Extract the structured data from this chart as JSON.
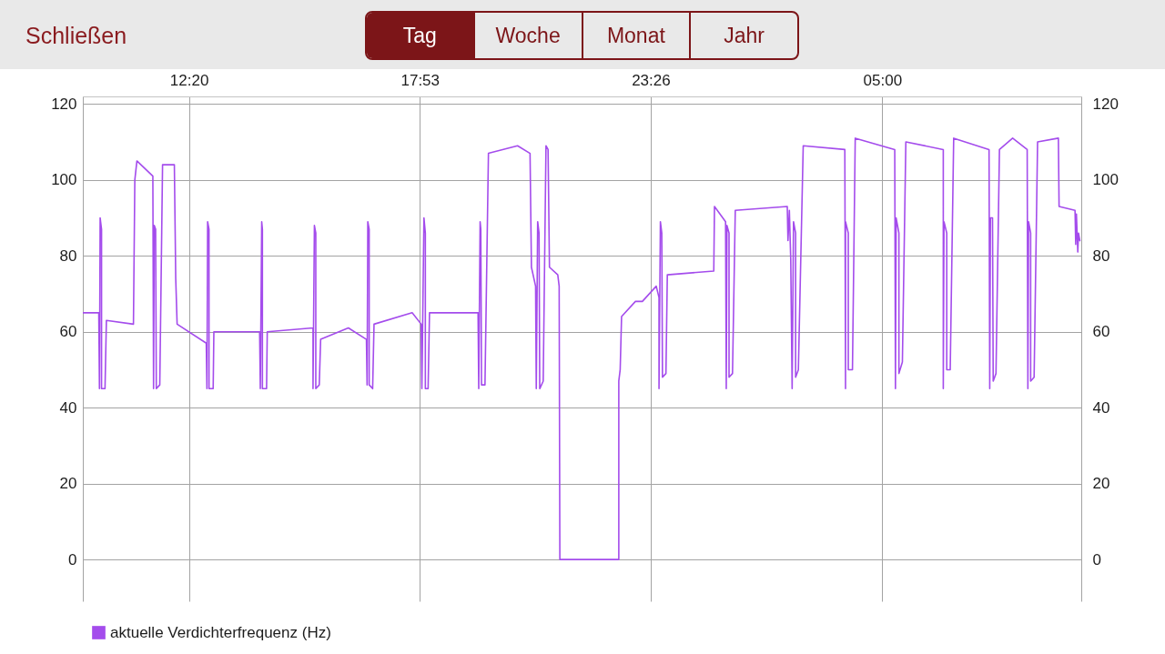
{
  "chart_data": {
    "type": "line",
    "x": [
      "--01-01T09:47",
      "--01-01T10:10",
      "--01-01T10:11",
      "--01-01T10:12",
      "--01-01T10:14",
      "--01-01T10:14",
      "--01-01T10:19",
      "--01-01T10:21",
      "--01-01T11:00",
      "--01-01T11:02",
      "--01-01T11:05",
      "--01-01T11:28",
      "--01-01T11:29",
      "--01-01T11:30",
      "--01-01T11:32",
      "--01-01T11:33",
      "--01-01T11:38",
      "--01-01T11:42",
      "--01-01T11:59",
      "--01-01T12:01",
      "--01-01T12:03",
      "--01-01T12:45",
      "--01-01T12:46",
      "--01-01T12:47",
      "--01-01T12:49",
      "--01-01T12:49",
      "--01-01T12:55",
      "--01-01T12:56",
      "--01-01T14:02",
      "--01-01T14:03",
      "--01-01T14:05",
      "--01-01T14:06",
      "--01-01T14:06",
      "--01-01T14:12",
      "--01-01T14:13",
      "--01-01T15:19",
      "--01-01T15:19",
      "--01-01T15:21",
      "--01-01T15:23",
      "--01-01T15:23",
      "--01-01T15:28",
      "--01-01T15:30",
      "--01-01T16:10",
      "--01-01T16:36",
      "--01-01T16:37",
      "--01-01T16:38",
      "--01-01T16:40",
      "--01-01T16:40",
      "--01-01T16:45",
      "--01-01T16:47",
      "--01-01T17:42",
      "--01-01T17:55",
      "--01-01T17:56",
      "--01-01T17:59",
      "--01-01T18:01",
      "--01-01T18:01",
      "--01-01T18:05",
      "--01-01T18:07",
      "--01-01T19:17",
      "--01-01T19:18",
      "--01-01T19:20",
      "--01-01T19:21",
      "--01-01T19:22",
      "--01-01T19:27",
      "--01-01T19:32",
      "--01-01T20:14",
      "--01-01T20:32",
      "--01-01T20:34",
      "--01-01T20:40",
      "--01-01T20:41",
      "--01-01T20:43",
      "--01-01T20:45",
      "--01-01T20:46",
      "--01-01T20:51",
      "--01-01T20:55",
      "--01-01T20:58",
      "--01-01T21:00",
      "--01-01T21:12",
      "--01-01T21:14",
      "--01-01T21:15",
      "--01-01T22:40",
      "--01-01T22:40",
      "--01-01T22:42",
      "--01-01T22:44",
      "--01-01T23:04",
      "--01-01T23:14",
      "--01-01T23:34",
      "--01-01T23:38",
      "--01-01T23:38",
      "--01-01T23:40",
      "--01-01T23:42",
      "--01-01T23:43",
      "--01-01T23:48",
      "--01-01T23:50",
      "--01-02T00:57",
      "--01-02T00:58",
      "--01-02T01:14",
      "--01-02T01:15",
      "--01-02T01:16",
      "--01-02T01:19",
      "--01-02T01:19",
      "--01-02T01:24",
      "--01-02T01:28",
      "--01-02T02:43",
      "--01-02T02:44",
      "--01-02T02:46",
      "--01-02T02:48",
      "--01-02T02:50",
      "--01-02T02:52",
      "--01-02T02:55",
      "--01-02T02:55",
      "--01-02T02:59",
      "--01-02T03:06",
      "--01-02T04:06",
      "--01-02T04:07",
      "--01-02T04:07",
      "--01-02T04:11",
      "--01-02T04:11",
      "--01-02T04:17",
      "--01-02T04:21",
      "--01-02T05:18",
      "--01-02T05:19",
      "--01-02T05:20",
      "--01-02T05:24",
      "--01-02T05:24",
      "--01-02T05:29",
      "--01-02T05:34",
      "--01-02T06:28",
      "--01-02T06:28",
      "--01-02T06:29",
      "--01-02T06:33",
      "--01-02T06:33",
      "--01-02T06:38",
      "--01-02T06:43",
      "--01-02T07:34",
      "--01-02T07:35",
      "--01-02T07:36",
      "--01-02T07:39",
      "--01-02T07:40",
      "--01-02T07:44",
      "--01-02T07:49",
      "--01-02T08:08",
      "--01-02T08:29",
      "--01-02T08:30",
      "--01-02T08:31",
      "--01-02T08:34",
      "--01-02T08:34",
      "--01-02T08:39",
      "--01-02T08:44",
      "--01-02T09:14",
      "--01-02T09:15",
      "--01-02T09:38",
      "--01-02T09:39",
      "--01-02T09:40",
      "--01-02T09:42",
      "--01-02T09:43",
      "--01-02T09:45"
    ],
    "series": [
      {
        "name": "aktuelle Verdichterfrequenz (Hz)",
        "color": "#a44cec",
        "values": [
          65,
          65,
          45,
          90,
          87,
          45,
          45,
          63,
          62,
          100,
          105,
          101,
          45,
          88,
          87,
          45,
          46,
          104,
          104,
          74,
          62,
          57,
          45,
          89,
          87,
          45,
          45,
          60,
          60,
          45,
          89,
          87,
          45,
          45,
          60,
          61,
          45,
          88,
          86,
          45,
          46,
          58,
          61,
          58,
          46,
          89,
          87,
          46,
          45,
          62,
          65,
          62,
          45,
          90,
          86,
          45,
          45,
          65,
          65,
          45,
          89,
          87,
          46,
          46,
          107,
          109,
          107,
          77,
          72,
          45,
          89,
          86,
          45,
          47,
          109,
          108,
          77,
          75,
          72,
          0,
          0,
          47,
          50,
          64,
          68,
          68,
          72,
          69,
          45,
          89,
          86,
          48,
          49,
          75,
          76,
          93,
          89,
          45,
          88,
          86,
          48,
          49,
          92,
          93,
          84,
          92,
          79,
          45,
          89,
          86,
          48,
          50,
          109,
          108,
          45,
          89,
          86,
          50,
          50,
          111,
          108,
          45,
          90,
          86,
          49,
          52,
          110,
          108,
          45,
          89,
          86,
          50,
          50,
          111,
          108,
          45,
          90,
          90,
          47,
          49,
          108,
          111,
          108,
          45,
          89,
          86,
          47,
          48,
          110,
          111,
          93,
          92,
          83,
          91,
          81,
          86,
          84
        ]
      }
    ],
    "xlim": [
      "--01-01T09:47",
      "--01-02T09:47"
    ],
    "xticks": [
      {
        "value": "--01-01T12:20",
        "label": "12:20"
      },
      {
        "value": "--01-01T17:53",
        "label": "17:53"
      },
      {
        "value": "--01-01T23:26",
        "label": "23:26"
      },
      {
        "value": "--01-02T05:00",
        "label": "05:00"
      }
    ],
    "ylim": [
      -11,
      122
    ],
    "yticks": [
      0,
      20,
      40,
      60,
      80,
      100,
      120
    ],
    "y2lim": [
      -11,
      122
    ],
    "y2ticks": [
      0,
      20,
      40,
      60,
      80,
      100,
      120
    ],
    "grid": true,
    "legend": "bottom",
    "annotations": [
      "Schließen",
      "Tag",
      "Woche",
      "Monat",
      "Jahr"
    ]
  }
}
